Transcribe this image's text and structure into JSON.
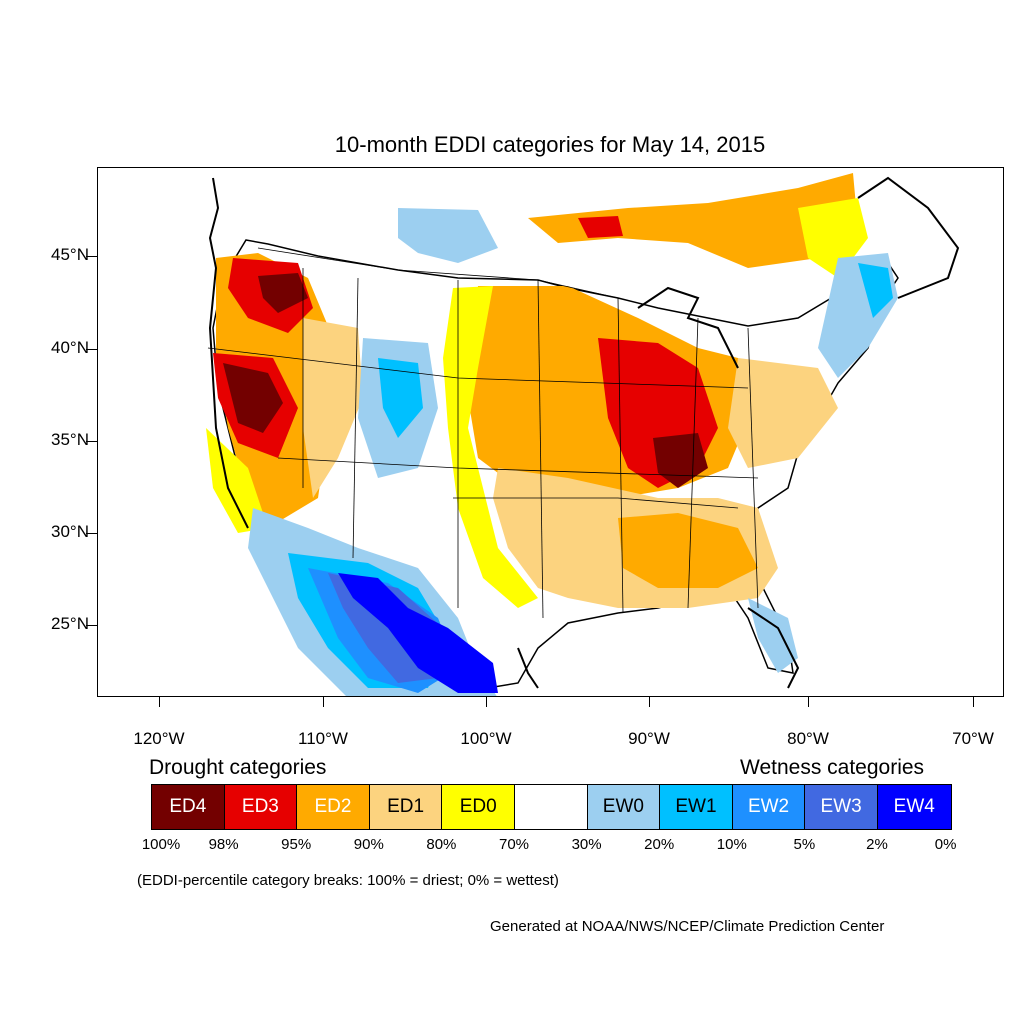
{
  "title": "10-month EDDI categories for May 14, 2015",
  "lat_labels": [
    "45°N",
    "40°N",
    "35°N",
    "30°N",
    "25°N"
  ],
  "lon_labels": [
    "120°W",
    "110°W",
    "100°W",
    "90°W",
    "80°W",
    "70°W"
  ],
  "legend": {
    "drought_heading": "Drought categories",
    "wetness_heading": "Wetness categories",
    "categories": [
      {
        "label": "ED4",
        "color": "#730000",
        "text_color": "#ffffff"
      },
      {
        "label": "ED3",
        "color": "#e60000",
        "text_color": "#ffffff"
      },
      {
        "label": "ED2",
        "color": "#ffaa00",
        "text_color": "#ffffff"
      },
      {
        "label": "ED1",
        "color": "#fcd37f",
        "text_color": "#000000"
      },
      {
        "label": "ED0",
        "color": "#ffff00",
        "text_color": "#000000"
      },
      {
        "label": "",
        "color": "#ffffff",
        "text_color": "#000000"
      },
      {
        "label": "EW0",
        "color": "#9ccff0",
        "text_color": "#000000"
      },
      {
        "label": "EW1",
        "color": "#00c0ff",
        "text_color": "#000000"
      },
      {
        "label": "EW2",
        "color": "#1e90ff",
        "text_color": "#ffffff"
      },
      {
        "label": "EW3",
        "color": "#4169e1",
        "text_color": "#ffffff"
      },
      {
        "label": "EW4",
        "color": "#0000ff",
        "text_color": "#ffffff"
      }
    ],
    "percentiles": [
      "100%",
      "98%",
      "95%",
      "90%",
      "80%",
      "70%",
      "30%",
      "20%",
      "10%",
      "5%",
      "2%",
      "0%"
    ]
  },
  "note": "(EDDI-percentile category breaks: 100% = driest; 0% = wettest)",
  "credit": "Generated at NOAA/NWS/NCEP/Climate Prediction Center"
}
